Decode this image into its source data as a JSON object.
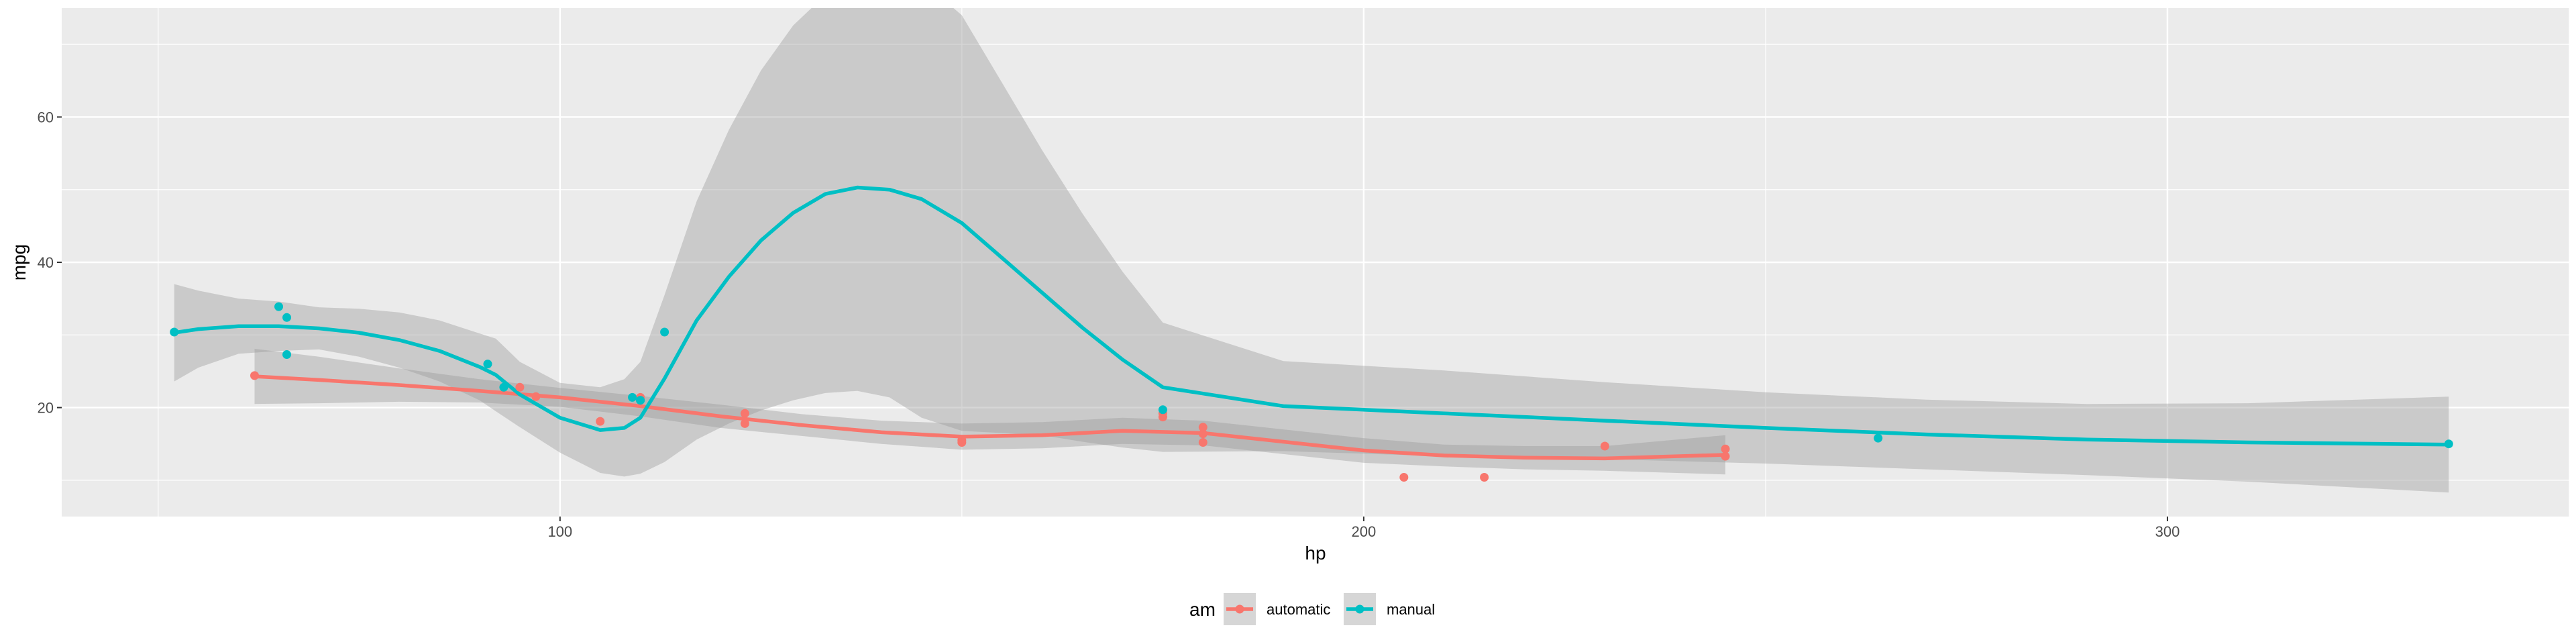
{
  "chart_data": {
    "type": "scatter",
    "xlabel": "hp",
    "ylabel": "mpg",
    "xlim": [
      38,
      350
    ],
    "ylim": [
      5,
      75
    ],
    "x_ticks": [
      100,
      200,
      300
    ],
    "y_ticks": [
      20,
      40,
      60
    ],
    "grid": true,
    "legend": {
      "title": "am",
      "position": "bottom"
    },
    "series": [
      {
        "name": "automatic",
        "color": "#F8766D",
        "points": [
          {
            "x": 62,
            "y": 24.4
          },
          {
            "x": 95,
            "y": 22.8
          },
          {
            "x": 97,
            "y": 21.5
          },
          {
            "x": 105,
            "y": 18.1
          },
          {
            "x": 110,
            "y": 21.4
          },
          {
            "x": 123,
            "y": 19.2
          },
          {
            "x": 123,
            "y": 17.8
          },
          {
            "x": 150,
            "y": 15.5
          },
          {
            "x": 150,
            "y": 15.2
          },
          {
            "x": 175,
            "y": 18.7
          },
          {
            "x": 175,
            "y": 19.2
          },
          {
            "x": 180,
            "y": 16.4
          },
          {
            "x": 180,
            "y": 17.3
          },
          {
            "x": 180,
            "y": 15.2
          },
          {
            "x": 205,
            "y": 10.4
          },
          {
            "x": 215,
            "y": 10.4
          },
          {
            "x": 230,
            "y": 14.7
          },
          {
            "x": 245,
            "y": 14.3
          },
          {
            "x": 245,
            "y": 13.3
          }
        ],
        "smooth": {
          "x": [
            62,
            70,
            80,
            90,
            100,
            110,
            120,
            130,
            140,
            150,
            160,
            170,
            180,
            190,
            200,
            210,
            220,
            230,
            245
          ],
          "y": [
            24.3,
            23.8,
            23.1,
            22.3,
            21.4,
            20.2,
            18.8,
            17.6,
            16.6,
            16.0,
            16.2,
            16.8,
            16.5,
            15.3,
            14.1,
            13.4,
            13.1,
            13.0,
            13.5
          ],
          "lower": [
            20.5,
            20.6,
            20.8,
            20.7,
            20.1,
            18.8,
            17.2,
            16.1,
            15.0,
            14.2,
            14.4,
            15.0,
            14.8,
            13.6,
            12.4,
            11.9,
            11.5,
            11.3,
            10.8
          ],
          "upper": [
            28.1,
            27.0,
            25.4,
            23.9,
            22.7,
            21.6,
            20.4,
            19.1,
            18.2,
            17.8,
            18.0,
            18.6,
            18.2,
            17.0,
            15.8,
            14.9,
            14.7,
            14.7,
            16.2
          ]
        }
      },
      {
        "name": "manual",
        "color": "#00BFC4",
        "points": [
          {
            "x": 52,
            "y": 30.4
          },
          {
            "x": 65,
            "y": 33.9
          },
          {
            "x": 66,
            "y": 32.4
          },
          {
            "x": 66,
            "y": 27.3
          },
          {
            "x": 91,
            "y": 26.0
          },
          {
            "x": 93,
            "y": 22.8
          },
          {
            "x": 109,
            "y": 21.4
          },
          {
            "x": 110,
            "y": 21.0
          },
          {
            "x": 110,
            "y": 21.0
          },
          {
            "x": 113,
            "y": 30.4
          },
          {
            "x": 175,
            "y": 19.7
          },
          {
            "x": 264,
            "y": 15.8
          },
          {
            "x": 335,
            "y": 15.0
          }
        ],
        "smooth": {
          "x": [
            52,
            55,
            60,
            65,
            70,
            75,
            80,
            85,
            90,
            92,
            95,
            100,
            105,
            108,
            110,
            113,
            117,
            121,
            125,
            129,
            133,
            137,
            141,
            145,
            150,
            155,
            160,
            165,
            170,
            175,
            190,
            210,
            230,
            250,
            270,
            290,
            310,
            335
          ],
          "y": [
            30.3,
            30.8,
            31.2,
            31.2,
            30.9,
            30.3,
            29.3,
            27.8,
            25.6,
            24.5,
            21.8,
            18.6,
            16.9,
            17.2,
            18.6,
            24.0,
            32.0,
            38.0,
            43.0,
            46.8,
            49.4,
            50.3,
            50.0,
            48.7,
            45.4,
            40.6,
            35.8,
            31.0,
            26.6,
            22.8,
            20.2,
            19.2,
            18.2,
            17.2,
            16.3,
            15.6,
            15.2,
            14.9
          ],
          "lower": [
            23.6,
            25.5,
            27.4,
            27.8,
            28.0,
            27.0,
            25.5,
            23.6,
            21.0,
            19.5,
            17.3,
            13.8,
            11.0,
            10.5,
            10.9,
            12.5,
            15.6,
            17.8,
            19.6,
            21.0,
            22.0,
            22.3,
            21.4,
            18.6,
            16.8,
            16.5,
            16.2,
            15.3,
            14.5,
            13.9,
            14.0,
            13.3,
            12.9,
            12.3,
            11.5,
            10.7,
            9.8,
            8.3
          ],
          "upper": [
            37.0,
            36.1,
            35.0,
            34.6,
            33.8,
            33.6,
            33.1,
            32.0,
            30.2,
            29.5,
            26.3,
            23.4,
            22.8,
            23.9,
            26.3,
            35.5,
            48.4,
            58.2,
            66.4,
            72.6,
            76.8,
            78.3,
            78.6,
            78.8,
            74.0,
            64.7,
            55.4,
            46.7,
            38.7,
            31.7,
            26.4,
            25.1,
            23.5,
            22.1,
            21.1,
            20.5,
            20.6,
            21.5
          ]
        }
      }
    ]
  }
}
